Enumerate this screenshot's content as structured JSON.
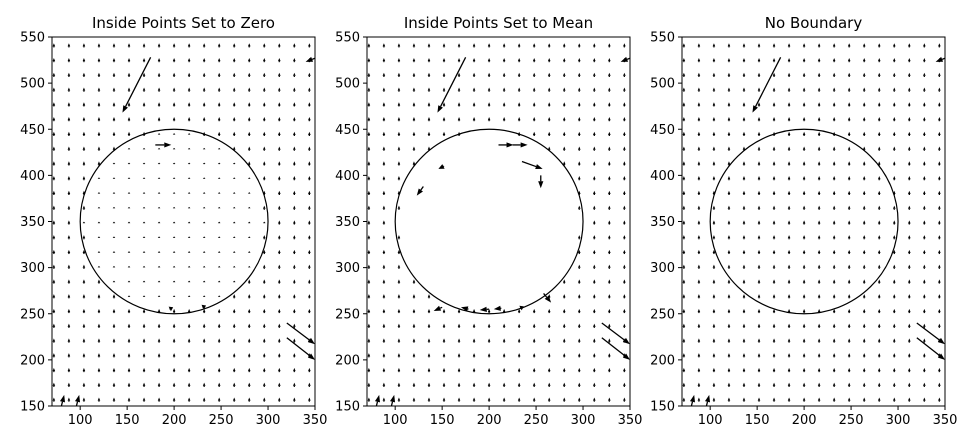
{
  "chart_data": [
    {
      "type": "quiver",
      "title": "Inside Points Set to Zero",
      "xlim": [
        70,
        350
      ],
      "ylim": [
        150,
        550
      ],
      "xticks": [
        100,
        150,
        200,
        250,
        300,
        350
      ],
      "yticks": [
        150,
        200,
        250,
        300,
        350,
        400,
        450,
        500,
        550
      ],
      "circle": {
        "cx": 200,
        "cy": 350,
        "r": 100
      },
      "grid_spacing": 16,
      "inside_mode": "zero",
      "large_arrows": [
        {
          "x": 175,
          "y": 528,
          "u": -30,
          "v": -60
        },
        {
          "x": 180,
          "y": 433,
          "u": 17,
          "v": 0
        },
        {
          "x": 350,
          "y": 527,
          "u": -10,
          "v": -4
        },
        {
          "x": 320,
          "y": 240,
          "u": 30,
          "v": -23
        },
        {
          "x": 320,
          "y": 224,
          "u": 30,
          "v": -24
        },
        {
          "x": 80,
          "y": 150,
          "u": 3,
          "v": 12
        },
        {
          "x": 96,
          "y": 150,
          "u": 3,
          "v": 12
        },
        {
          "x": 195,
          "y": 255,
          "u": 4,
          "v": 2
        },
        {
          "x": 230,
          "y": 257,
          "u": 4,
          "v": 2
        }
      ]
    },
    {
      "type": "quiver",
      "title": "Inside Points Set to Mean",
      "xlim": [
        70,
        350
      ],
      "ylim": [
        150,
        550
      ],
      "xticks": [
        100,
        150,
        200,
        250,
        300,
        350
      ],
      "yticks": [
        150,
        200,
        250,
        300,
        350,
        400,
        450,
        500,
        550
      ],
      "circle": {
        "cx": 200,
        "cy": 350,
        "r": 100
      },
      "grid_spacing": 16,
      "inside_mode": "mean",
      "large_arrows": [
        {
          "x": 175,
          "y": 528,
          "u": -30,
          "v": -60
        },
        {
          "x": 350,
          "y": 527,
          "u": -10,
          "v": -4
        },
        {
          "x": 320,
          "y": 240,
          "u": 30,
          "v": -23
        },
        {
          "x": 320,
          "y": 224,
          "u": 30,
          "v": -24
        },
        {
          "x": 80,
          "y": 150,
          "u": 3,
          "v": 12
        },
        {
          "x": 96,
          "y": 150,
          "u": 3,
          "v": 12
        },
        {
          "x": 210,
          "y": 433,
          "u": 16,
          "v": 0
        },
        {
          "x": 225,
          "y": 433,
          "u": 16,
          "v": 0
        },
        {
          "x": 235,
          "y": 415,
          "u": 22,
          "v": -8
        },
        {
          "x": 255,
          "y": 400,
          "u": 0,
          "v": -14
        },
        {
          "x": 152,
          "y": 410,
          "u": -6,
          "v": -3
        },
        {
          "x": 130,
          "y": 388,
          "u": -7,
          "v": -10
        },
        {
          "x": 150,
          "y": 257,
          "u": -9,
          "v": -4
        },
        {
          "x": 178,
          "y": 255,
          "u": -8,
          "v": 2
        },
        {
          "x": 200,
          "y": 255,
          "u": -10,
          "v": -1
        },
        {
          "x": 213,
          "y": 256,
          "u": -8,
          "v": -1
        },
        {
          "x": 233,
          "y": 256,
          "u": 4,
          "v": 2
        },
        {
          "x": 258,
          "y": 272,
          "u": 8,
          "v": -10
        },
        {
          "x": 258,
          "y": 348,
          "u": 0,
          "v": 0
        }
      ]
    },
    {
      "type": "quiver",
      "title": "No Boundary",
      "xlim": [
        70,
        350
      ],
      "ylim": [
        150,
        550
      ],
      "xticks": [
        100,
        150,
        200,
        250,
        300,
        350
      ],
      "yticks": [
        150,
        200,
        250,
        300,
        350,
        400,
        450,
        500,
        550
      ],
      "circle": {
        "cx": 200,
        "cy": 350,
        "r": 100
      },
      "grid_spacing": 16,
      "inside_mode": "field",
      "large_arrows": [
        {
          "x": 175,
          "y": 528,
          "u": -30,
          "v": -60
        },
        {
          "x": 350,
          "y": 527,
          "u": -10,
          "v": -4
        },
        {
          "x": 320,
          "y": 240,
          "u": 30,
          "v": -23
        },
        {
          "x": 320,
          "y": 224,
          "u": 30,
          "v": -24
        },
        {
          "x": 80,
          "y": 150,
          "u": 3,
          "v": 12
        },
        {
          "x": 96,
          "y": 150,
          "u": 3,
          "v": 12
        }
      ]
    }
  ],
  "colors": {
    "arrow": "#000000",
    "circle": "#000000",
    "axis": "#000000",
    "background": "#ffffff"
  }
}
